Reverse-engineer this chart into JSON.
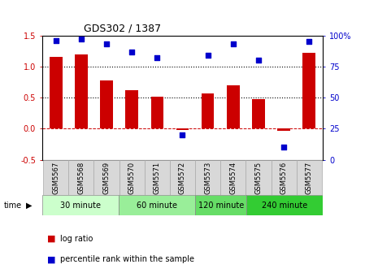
{
  "title": "GDS302 / 1387",
  "samples": [
    "GSM5567",
    "GSM5568",
    "GSM5569",
    "GSM5570",
    "GSM5571",
    "GSM5572",
    "GSM5573",
    "GSM5574",
    "GSM5575",
    "GSM5576",
    "GSM5577"
  ],
  "log_ratio": [
    1.15,
    1.2,
    0.77,
    0.62,
    0.52,
    -0.02,
    0.57,
    0.7,
    0.47,
    -0.03,
    1.22
  ],
  "percentile": [
    96,
    97,
    93,
    87,
    82,
    20,
    84,
    93,
    80,
    10,
    95
  ],
  "bar_color": "#cc0000",
  "dot_color": "#0000cc",
  "ylim_left": [
    -0.5,
    1.5
  ],
  "ylim_right": [
    0,
    100
  ],
  "yticks_left": [
    -0.5,
    0.0,
    0.5,
    1.0,
    1.5
  ],
  "yticks_right": [
    0,
    25,
    50,
    75,
    100
  ],
  "yticklabels_right": [
    "0",
    "25",
    "50",
    "75",
    "100%"
  ],
  "hlines": [
    0.5,
    1.0
  ],
  "zero_line": 0.0,
  "groups": [
    {
      "label": "30 minute",
      "start": 0,
      "end": 3,
      "color": "#ccffcc"
    },
    {
      "label": "60 minute",
      "start": 3,
      "end": 6,
      "color": "#99ee99"
    },
    {
      "label": "120 minute",
      "start": 6,
      "end": 8,
      "color": "#66dd66"
    },
    {
      "label": "240 minute",
      "start": 8,
      "end": 11,
      "color": "#33cc33"
    }
  ],
  "time_label": "time",
  "legend_log_ratio": "log ratio",
  "legend_percentile": "percentile rank within the sample",
  "bg_color": "#ffffff",
  "bar_width": 0.5,
  "sample_box_color": "#d8d8d8",
  "sample_box_edge": "#aaaaaa"
}
